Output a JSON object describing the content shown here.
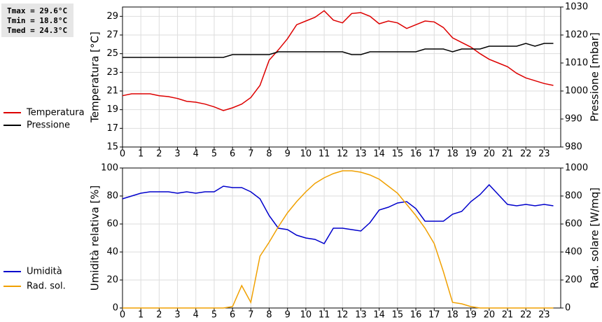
{
  "chart_data": [
    {
      "type": "line",
      "annotations": [
        "Tmax = 29.6°C",
        "Tmin = 18.8°C",
        "Tmed = 24.3°C"
      ],
      "ylabel": "Temperatura [°C]",
      "y2label": "Pressione [mbar]",
      "x": [
        0,
        0.5,
        1,
        1.5,
        2,
        2.5,
        3,
        3.5,
        4,
        4.5,
        5,
        5.5,
        6,
        6.5,
        7,
        7.5,
        8,
        8.5,
        9,
        9.5,
        10,
        10.5,
        11,
        11.5,
        12,
        12.5,
        13,
        13.5,
        14,
        14.5,
        15,
        15.5,
        16,
        16.5,
        17,
        17.5,
        18,
        18.5,
        19,
        19.5,
        20,
        20.5,
        21,
        21.5,
        22,
        22.5,
        23,
        23.5
      ],
      "xlim": [
        0,
        23.9
      ],
      "xticks": [
        0,
        1,
        2,
        3,
        4,
        5,
        6,
        7,
        8,
        9,
        10,
        11,
        12,
        13,
        14,
        15,
        16,
        17,
        18,
        19,
        20,
        21,
        22,
        23
      ],
      "ylim": [
        15,
        30
      ],
      "yticks": [
        15,
        17,
        19,
        21,
        23,
        25,
        27,
        29
      ],
      "y2lim": [
        980,
        1030
      ],
      "y2ticks": [
        980,
        990,
        1000,
        1010,
        1020,
        1030
      ],
      "grid": true,
      "series": [
        {
          "name": "Temperatura",
          "color": "#dd0000",
          "values": [
            20.5,
            20.7,
            20.7,
            20.7,
            20.5,
            20.4,
            20.2,
            19.9,
            19.8,
            19.6,
            19.3,
            18.9,
            19.2,
            19.6,
            20.3,
            21.6,
            24.3,
            25.4,
            26.6,
            28.1,
            28.5,
            28.9,
            29.6,
            28.6,
            28.3,
            29.3,
            29.4,
            29.0,
            28.2,
            28.5,
            28.3,
            27.7,
            28.1,
            28.5,
            28.4,
            27.8,
            26.7,
            26.2,
            25.7,
            25.0,
            24.4,
            24.0,
            23.6,
            22.9,
            22.4,
            22.1,
            21.8,
            21.6
          ]
        },
        {
          "name": "Pressione",
          "color": "#000000",
          "axis": "y2",
          "values": [
            1012,
            1012,
            1012,
            1012,
            1012,
            1012,
            1012,
            1012,
            1012,
            1012,
            1012,
            1012,
            1013,
            1013,
            1013,
            1013,
            1013,
            1014,
            1014,
            1014,
            1014,
            1014,
            1014,
            1014,
            1014,
            1013,
            1013,
            1014,
            1014,
            1014,
            1014,
            1014,
            1014,
            1015,
            1015,
            1015,
            1014,
            1015,
            1015,
            1015,
            1016,
            1016,
            1016,
            1016,
            1017,
            1016,
            1017,
            1017
          ]
        }
      ]
    },
    {
      "type": "line",
      "ylabel": "Umidità relativa [%]",
      "y2label": "Rad. solare [W/mq]",
      "x": [
        0,
        0.5,
        1,
        1.5,
        2,
        2.5,
        3,
        3.5,
        4,
        4.5,
        5,
        5.5,
        6,
        6.5,
        7,
        7.5,
        8,
        8.5,
        9,
        9.5,
        10,
        10.5,
        11,
        11.5,
        12,
        12.5,
        13,
        13.5,
        14,
        14.5,
        15,
        15.5,
        16,
        16.5,
        17,
        17.5,
        18,
        18.5,
        19,
        19.5,
        20,
        20.5,
        21,
        21.5,
        22,
        22.5,
        23,
        23.5
      ],
      "xlim": [
        0,
        23.9
      ],
      "xticks": [
        0,
        1,
        2,
        3,
        4,
        5,
        6,
        7,
        8,
        9,
        10,
        11,
        12,
        13,
        14,
        15,
        16,
        17,
        18,
        19,
        20,
        21,
        22,
        23
      ],
      "ylim": [
        0,
        100
      ],
      "yticks": [
        0,
        20,
        40,
        60,
        80,
        100
      ],
      "y2lim": [
        0,
        1000
      ],
      "y2ticks": [
        0,
        200,
        400,
        600,
        800,
        1000
      ],
      "grid": true,
      "series": [
        {
          "name": "Umidità",
          "color": "#0000cc",
          "values": [
            78,
            80,
            82,
            83,
            83,
            83,
            82,
            83,
            82,
            83,
            83,
            87,
            86,
            86,
            83,
            78,
            66,
            57,
            56,
            52,
            50,
            49,
            46,
            57,
            57,
            56,
            55,
            61,
            70,
            72,
            75,
            76,
            71,
            62,
            62,
            62,
            67,
            69,
            76,
            81,
            88,
            81,
            74,
            73,
            74,
            73,
            74,
            73
          ]
        },
        {
          "name": "Rad. sol.",
          "color": "#f0a000",
          "axis": "y2",
          "values": [
            0,
            0,
            0,
            0,
            0,
            0,
            0,
            0,
            0,
            0,
            0,
            0,
            10,
            160,
            40,
            370,
            470,
            580,
            680,
            760,
            830,
            890,
            930,
            960,
            980,
            980,
            970,
            950,
            920,
            870,
            820,
            740,
            660,
            570,
            460,
            260,
            40,
            30,
            10,
            0,
            0,
            0,
            0,
            0,
            0,
            0,
            0,
            0
          ]
        }
      ]
    }
  ]
}
